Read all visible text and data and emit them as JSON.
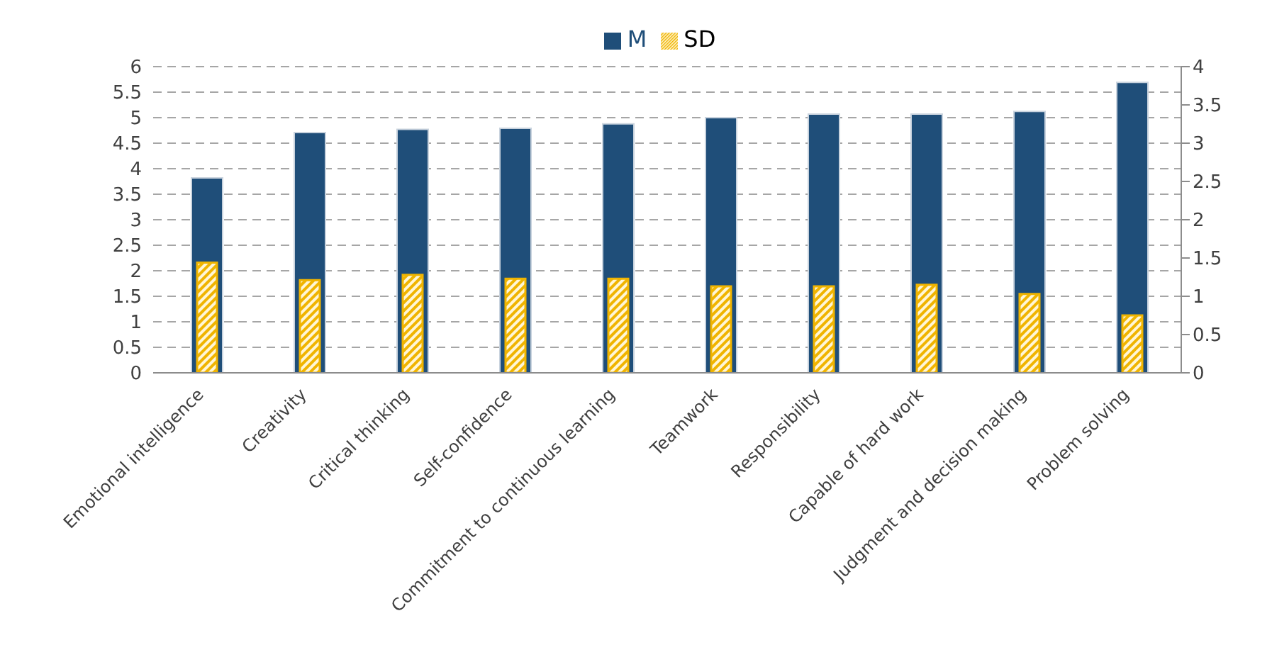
{
  "chart_data": {
    "type": "bar",
    "categories": [
      "Emotional intelligence",
      "Creativity",
      "Critical thinking",
      "Self-confidence",
      "Commitment to continuous learning",
      "Teamwork",
      "Responsibility",
      "Capable of hard work",
      "Judgment and decision making",
      "Problem solving"
    ],
    "series": [
      {
        "name": "M",
        "color": "#1f4e79",
        "values": [
          3.82,
          4.71,
          4.77,
          4.79,
          4.88,
          5.0,
          5.07,
          5.07,
          5.12,
          5.69
        ]
      },
      {
        "name": "SD",
        "color": "#f0b400",
        "axis": "y2",
        "values": [
          1.44,
          1.21,
          1.28,
          1.23,
          1.23,
          1.13,
          1.13,
          1.15,
          1.03,
          0.75
        ]
      }
    ],
    "ylim": [
      0,
      6
    ],
    "yticks": [
      0,
      0.5,
      1,
      1.5,
      2,
      2.5,
      3,
      3.5,
      4,
      4.5,
      5,
      5.5,
      6
    ],
    "y2lim": [
      0,
      4
    ],
    "y2ticks": [
      0,
      0.5,
      1,
      1.5,
      2,
      2.5,
      3,
      3.5,
      4
    ],
    "grid": "y",
    "legend": "top"
  }
}
